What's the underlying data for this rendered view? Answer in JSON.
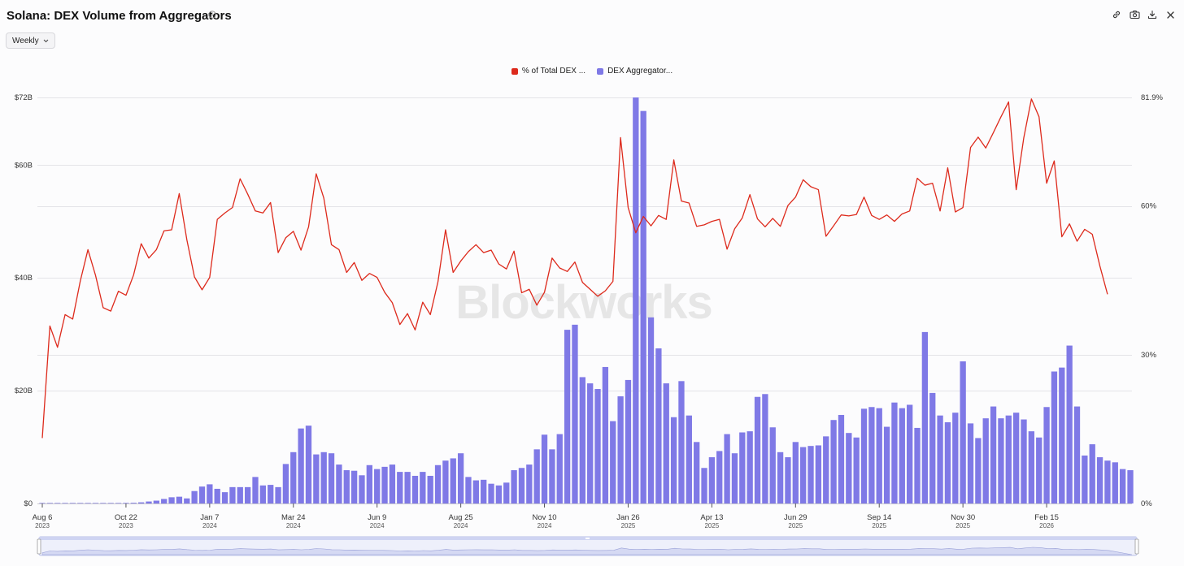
{
  "header": {
    "title": "Solana: DEX Volume from Aggregators",
    "icons": [
      "info-icon",
      "link-icon",
      "camera-icon",
      "download-icon",
      "close-icon"
    ]
  },
  "controls": {
    "interval_label": "Weekly"
  },
  "watermark": "Blockworks",
  "colors": {
    "line": "#dd2a1c",
    "bar": "#7f79e6",
    "grid": "#e4e4e8",
    "navigator": "#cfd4f2"
  },
  "chart_data": {
    "type": "bar+line",
    "title": "Solana: DEX Volume from Aggregators",
    "legend": [
      "% of Total DEX ...",
      "DEX Aggregator..."
    ],
    "left_axis": {
      "ticks": [
        "$0",
        "$20B",
        "$40B",
        "$60B",
        "$72B"
      ],
      "tick_values": [
        0,
        20,
        40,
        60,
        72
      ],
      "range": [
        0,
        72
      ],
      "unit": "billion USD"
    },
    "right_axis": {
      "ticks": [
        "0%",
        "30%",
        "60%",
        "81.9%"
      ],
      "tick_values": [
        0,
        30,
        60,
        81.9
      ],
      "range": [
        0,
        81.9
      ],
      "unit": "percent"
    },
    "x_ticks": [
      {
        "label": "Aug 6",
        "year": "2023",
        "index": 0
      },
      {
        "label": "Oct 22",
        "year": "2023",
        "index": 11
      },
      {
        "label": "Jan 7",
        "year": "2024",
        "index": 22
      },
      {
        "label": "Mar 24",
        "year": "2024",
        "index": 33
      },
      {
        "label": "Jun 9",
        "year": "2024",
        "index": 44
      },
      {
        "label": "Aug 25",
        "year": "2024",
        "index": 55
      },
      {
        "label": "Nov 10",
        "year": "2024",
        "index": 66
      },
      {
        "label": "Jan 26",
        "year": "2025",
        "index": 77
      },
      {
        "label": "Apr 13",
        "year": "2025",
        "index": 88
      },
      {
        "label": "Jun 29",
        "year": "2025",
        "index": 99
      },
      {
        "label": "Sep 14",
        "year": "2025",
        "index": 110
      },
      {
        "label": "Nov 30",
        "year": "2025",
        "index": 121
      },
      {
        "label": "Feb 15",
        "year": "2026",
        "index": 132
      }
    ],
    "series": [
      {
        "name": "DEX Aggregator Volume",
        "type": "bar",
        "axis": "left",
        "values": [
          0.02,
          0.02,
          0.02,
          0.02,
          0.02,
          0.03,
          0.03,
          0.04,
          0.05,
          0.05,
          0.07,
          0.1,
          0.12,
          0.2,
          0.35,
          0.5,
          0.8,
          1.1,
          1.2,
          0.9,
          2.2,
          3.0,
          3.4,
          2.6,
          2.0,
          2.9,
          2.9,
          2.9,
          4.7,
          3.2,
          3.3,
          2.9,
          7.0,
          9.1,
          13.3,
          13.8,
          8.7,
          9.1,
          8.9,
          6.9,
          5.9,
          5.8,
          5.0,
          6.8,
          6.1,
          6.5,
          6.9,
          5.6,
          5.6,
          4.9,
          5.6,
          4.9,
          6.8,
          7.6,
          8.0,
          8.9,
          4.7,
          4.1,
          4.2,
          3.5,
          3.2,
          3.7,
          5.9,
          6.3,
          6.9,
          9.6,
          12.2,
          9.6,
          12.3,
          30.8,
          31.7,
          22.4,
          21.3,
          20.3,
          24.2,
          14.6,
          19.0,
          21.9,
          72.0,
          69.6,
          33.0,
          27.5,
          21.3,
          15.3,
          21.7,
          15.6,
          10.9,
          6.3,
          8.2,
          9.3,
          12.3,
          8.9,
          12.6,
          12.8,
          18.9,
          19.4,
          13.5,
          9.1,
          8.2,
          10.9,
          10.0,
          10.2,
          10.3,
          11.9,
          14.8,
          15.7,
          12.5,
          11.7,
          16.8,
          17.1,
          16.9,
          13.6,
          17.9,
          16.9,
          17.5,
          13.4,
          30.4,
          19.6,
          15.6,
          14.4,
          16.1,
          25.2,
          14.2,
          11.6,
          15.1,
          17.2,
          15.1,
          15.6,
          16.1,
          14.9,
          12.8,
          11.7,
          17.1,
          23.4,
          24.1,
          28.0,
          17.2,
          8.5,
          10.5,
          8.2,
          7.6,
          7.3,
          6.1,
          5.9
        ]
      },
      {
        "name": "% of Total DEX Volume",
        "type": "line",
        "axis": "right",
        "values": [
          13.2,
          35.8,
          31.5,
          38.1,
          37.2,
          44.9,
          51.2,
          46.0,
          39.5,
          38.8,
          42.8,
          42.0,
          46.1,
          52.4,
          49.5,
          51.2,
          55.0,
          55.2,
          62.5,
          53.2,
          45.7,
          43.1,
          45.6,
          57.3,
          58.6,
          59.7,
          65.5,
          62.4,
          59.0,
          58.6,
          60.7,
          50.6,
          53.6,
          54.9,
          51.1,
          55.8,
          66.5,
          61.6,
          52.2,
          51.2,
          46.6,
          48.6,
          45.0,
          46.4,
          45.6,
          42.6,
          40.5,
          36.1,
          38.3,
          35.0,
          40.6,
          38.1,
          44.7,
          55.2,
          46.6,
          48.9,
          50.8,
          52.2,
          50.6,
          51.1,
          48.3,
          47.3,
          50.9,
          42.5,
          43.2,
          40.0,
          42.6,
          49.5,
          47.5,
          46.8,
          48.7,
          44.6,
          43.2,
          41.8,
          42.9,
          44.8,
          73.8,
          59.7,
          54.6,
          57.9,
          56.0,
          58.1,
          57.3,
          69.3,
          61.0,
          60.6,
          55.9,
          56.2,
          56.9,
          57.3,
          51.3,
          55.4,
          57.6,
          62.3,
          57.4,
          55.8,
          57.5,
          55.9,
          60.1,
          61.8,
          65.3,
          63.9,
          63.3,
          53.9,
          56.0,
          58.2,
          58.0,
          58.3,
          61.8,
          58.1,
          57.3,
          58.2,
          56.9,
          58.4,
          59.0,
          65.6,
          64.2,
          64.6,
          59.0,
          67.7,
          58.8,
          59.7,
          71.8,
          73.9,
          71.7,
          74.8,
          78.0,
          81.0,
          63.3,
          73.8,
          81.6,
          78.0,
          64.6,
          69.1,
          53.8,
          56.4,
          52.9,
          55.3,
          54.3,
          47.9,
          42.2
        ]
      }
    ]
  }
}
